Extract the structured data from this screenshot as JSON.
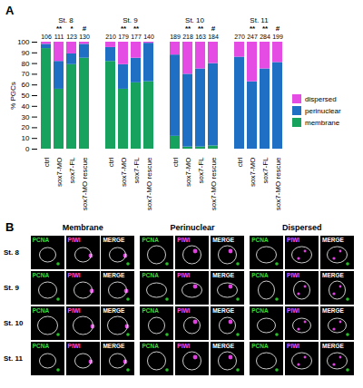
{
  "chart_data": {
    "type": "bar",
    "stacked": true,
    "panel_label": "A",
    "ylabel": "% PGCs",
    "ylim": [
      0,
      100
    ],
    "yticks": [
      0,
      10,
      20,
      30,
      40,
      50,
      60,
      70,
      80,
      90,
      100
    ],
    "categories": [
      "ctrl",
      "sox7-MO",
      "sox7-FL",
      "sox7-MO rescue"
    ],
    "legend": "right",
    "panels": [
      {
        "title": "St. 8",
        "n": [
          106,
          111,
          123,
          130
        ],
        "significance": [
          null,
          "**",
          "*",
          "#"
        ]
      },
      {
        "title": "St. 9",
        "n": [
          210,
          179,
          177,
          140
        ],
        "significance": [
          null,
          "**",
          "**",
          null
        ]
      },
      {
        "title": "St. 10",
        "n": [
          189,
          218,
          163,
          184
        ],
        "significance": [
          null,
          "**",
          "**",
          "#"
        ]
      },
      {
        "title": "St. 11",
        "n": [
          270,
          247,
          284,
          199
        ],
        "significance": [
          null,
          "**",
          "**",
          "#"
        ]
      }
    ],
    "series": [
      {
        "name": "membrane",
        "color": "#17a35e",
        "values": [
          [
            94,
            56,
            79,
            85
          ],
          [
            82,
            56,
            62,
            63
          ],
          [
            12,
            2,
            2,
            3
          ],
          [
            0,
            0,
            0,
            0
          ]
        ]
      },
      {
        "name": "perinuclear",
        "color": "#1f6fc4",
        "values": [
          [
            4,
            26,
            10,
            13
          ],
          [
            13,
            23,
            23,
            36
          ],
          [
            76,
            68,
            73,
            77
          ],
          [
            86,
            63,
            75,
            81
          ]
        ]
      },
      {
        "name": "dispersed",
        "color": "#e44ce4",
        "values": [
          [
            2,
            18,
            11,
            2
          ],
          [
            5,
            21,
            15,
            1
          ],
          [
            12,
            30,
            25,
            20
          ],
          [
            14,
            37,
            25,
            19
          ]
        ]
      }
    ]
  },
  "panel_b": {
    "panel_label": "B",
    "columns": [
      "Membrane",
      "Perinuclear",
      "Dispersed"
    ],
    "channels": [
      "PCNA",
      "PIWI",
      "MERGE"
    ],
    "rows": [
      "St. 8",
      "St. 9",
      "St. 10",
      "St. 11"
    ]
  }
}
